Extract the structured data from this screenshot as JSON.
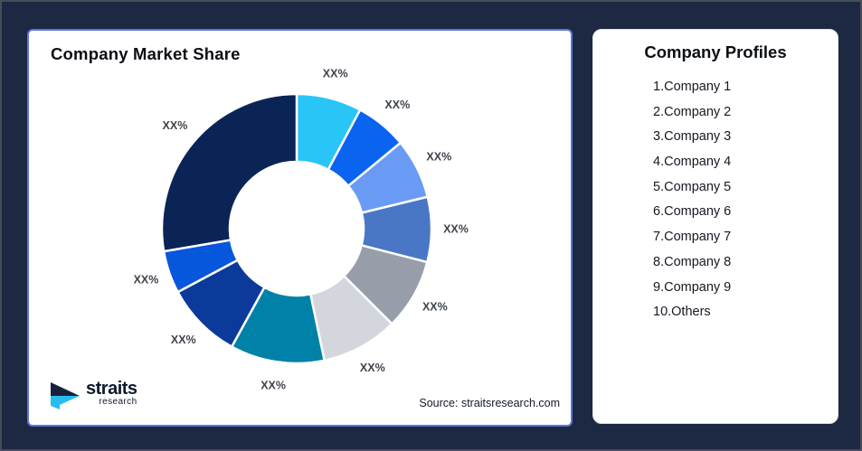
{
  "left_card": {
    "title": "Company Market Share",
    "source": "Source: straitsresearch.com",
    "logo": {
      "name": "straits",
      "subname": "research",
      "icon_navy": "#16223C",
      "icon_cyan": "#27BDF0"
    }
  },
  "right_card": {
    "title": "Company Profiles",
    "items": [
      "1.Company 1",
      "2.Company 2",
      "3.Company 3",
      "4.Company 4",
      "5.Company 5",
      "6.Company 6",
      "7.Company 7",
      "8.Company 8",
      "9.Company 9",
      "10.Others"
    ]
  },
  "chart_data": {
    "type": "pie",
    "subtype": "donut",
    "title": "Company Market Share",
    "start_angle_deg": 0,
    "direction": "clockwise",
    "inner_radius_ratio": 0.5,
    "legend": "none",
    "values_masked": true,
    "segments": [
      {
        "label": "XX%",
        "value": 7.8,
        "color": "#29C5F6"
      },
      {
        "label": "XX%",
        "value": 6.2,
        "color": "#0B64F0"
      },
      {
        "label": "XX%",
        "value": 7.2,
        "color": "#6A9BF4"
      },
      {
        "label": "XX%",
        "value": 7.8,
        "color": "#4A77C5"
      },
      {
        "label": "XX%",
        "value": 8.5,
        "color": "#979EA9"
      },
      {
        "label": "XX%",
        "value": 9.2,
        "color": "#D3D7DD"
      },
      {
        "label": "XX%",
        "value": 11.3,
        "color": "#0081A8"
      },
      {
        "label": "XX%",
        "value": 9.2,
        "color": "#0C3A9B"
      },
      {
        "label": "XX%",
        "value": 5.1,
        "color": "#0757DC"
      },
      {
        "label": "XX%",
        "value": 27.7,
        "color": "#0A2455"
      }
    ]
  },
  "colors": {
    "background": "#1D2942",
    "card": "#ffffff",
    "left_card_border": "#5C77DA",
    "label_text": "#3E434B"
  }
}
